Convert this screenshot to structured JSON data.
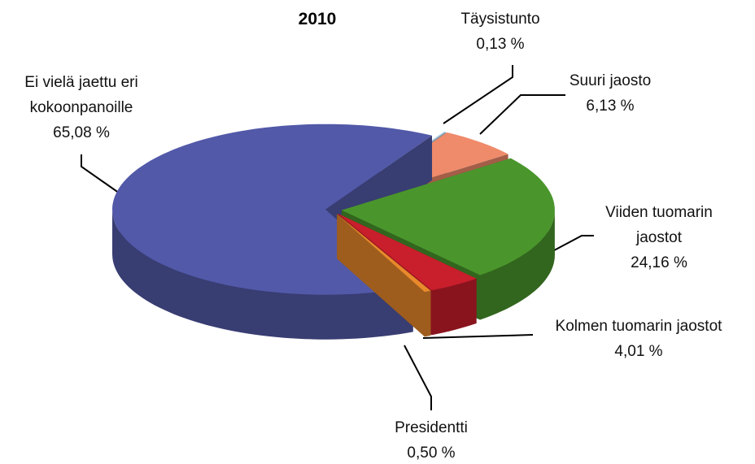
{
  "chart_data": {
    "type": "pie3d",
    "title": "2010",
    "categories": [
      "Täysistunto",
      "Suuri jaosto",
      "Viiden tuomarin jaostot",
      "Kolmen tuomarin jaostot",
      "Presidentti",
      "Ei vielä jaettu eri kokoonpanoille"
    ],
    "values": [
      0.13,
      6.13,
      24.16,
      4.01,
      0.5,
      65.08
    ],
    "value_labels": [
      "0,13 %",
      "6,13 %",
      "24,16 %",
      "4,01 %",
      "0,50 %",
      "65,08 %"
    ],
    "colors": [
      "#bcd9f0",
      "#ef8a6a",
      "#4a962c",
      "#c91e2c",
      "#e8892b",
      "#5259a8"
    ]
  }
}
